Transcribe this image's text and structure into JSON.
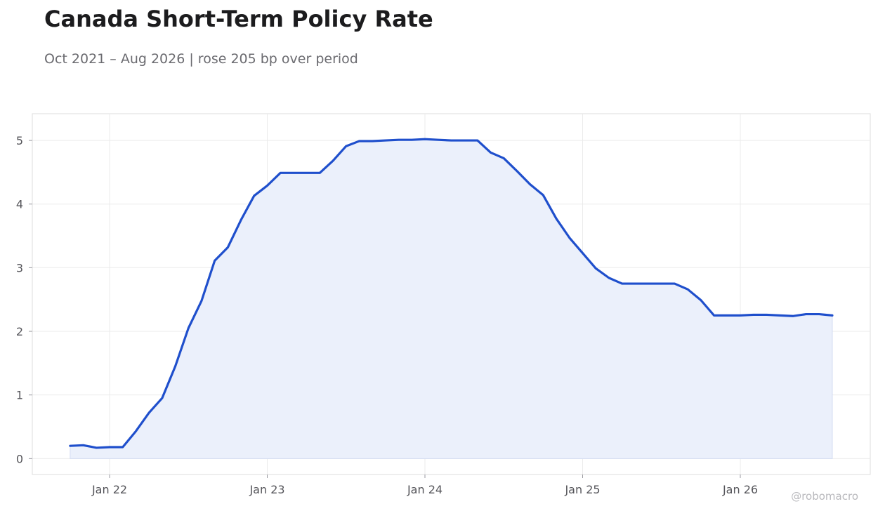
{
  "chart_data": {
    "type": "area",
    "title": "Canada Short-Term Policy Rate",
    "subtitle": "Oct 2021 – Aug 2026 | rose 205 bp over period",
    "xlabel": "",
    "ylabel": "",
    "ylim": [
      -0.25,
      5.42
    ],
    "x_ticks": [
      "Jan 22",
      "Jan 23",
      "Jan 24",
      "Jan 25",
      "Jan 26"
    ],
    "y_ticks": [
      "0",
      "1",
      "2",
      "3",
      "4",
      "5"
    ],
    "grid": true,
    "colors": {
      "line": "#1f4fcc",
      "fill": "#ebf0fb",
      "grid": "#ebebeb",
      "frame": "#dcdcdc"
    },
    "x": [
      "2021-10",
      "2021-11",
      "2021-12",
      "2022-01",
      "2022-02",
      "2022-03",
      "2022-04",
      "2022-05",
      "2022-06",
      "2022-07",
      "2022-08",
      "2022-09",
      "2022-10",
      "2022-11",
      "2022-12",
      "2023-01",
      "2023-02",
      "2023-03",
      "2023-04",
      "2023-05",
      "2023-06",
      "2023-07",
      "2023-08",
      "2023-09",
      "2023-10",
      "2023-11",
      "2023-12",
      "2024-01",
      "2024-02",
      "2024-03",
      "2024-04",
      "2024-05",
      "2024-06",
      "2024-07",
      "2024-08",
      "2024-09",
      "2024-10",
      "2024-11",
      "2024-12",
      "2025-01",
      "2025-02",
      "2025-03",
      "2025-04",
      "2025-05",
      "2025-06",
      "2025-07",
      "2025-08",
      "2025-09",
      "2025-10",
      "2025-11",
      "2025-12",
      "2026-01",
      "2026-02",
      "2026-03",
      "2026-04",
      "2026-05",
      "2026-06",
      "2026-07",
      "2026-08"
    ],
    "values": [
      0.2,
      0.21,
      0.17,
      0.18,
      0.18,
      0.43,
      0.72,
      0.95,
      1.45,
      2.05,
      2.48,
      3.11,
      3.32,
      3.75,
      4.13,
      4.29,
      4.49,
      4.49,
      4.49,
      4.49,
      4.68,
      4.91,
      4.99,
      4.99,
      5.0,
      5.01,
      5.01,
      5.02,
      5.01,
      5.0,
      5.0,
      5.0,
      4.81,
      4.72,
      4.52,
      4.31,
      4.14,
      3.77,
      3.47,
      3.23,
      2.99,
      2.84,
      2.75,
      2.75,
      2.75,
      2.75,
      2.75,
      2.66,
      2.49,
      2.25,
      2.25,
      2.25,
      2.26,
      2.26,
      2.25,
      2.24,
      2.27,
      2.27,
      2.25
    ]
  },
  "watermark": "@robomacro"
}
